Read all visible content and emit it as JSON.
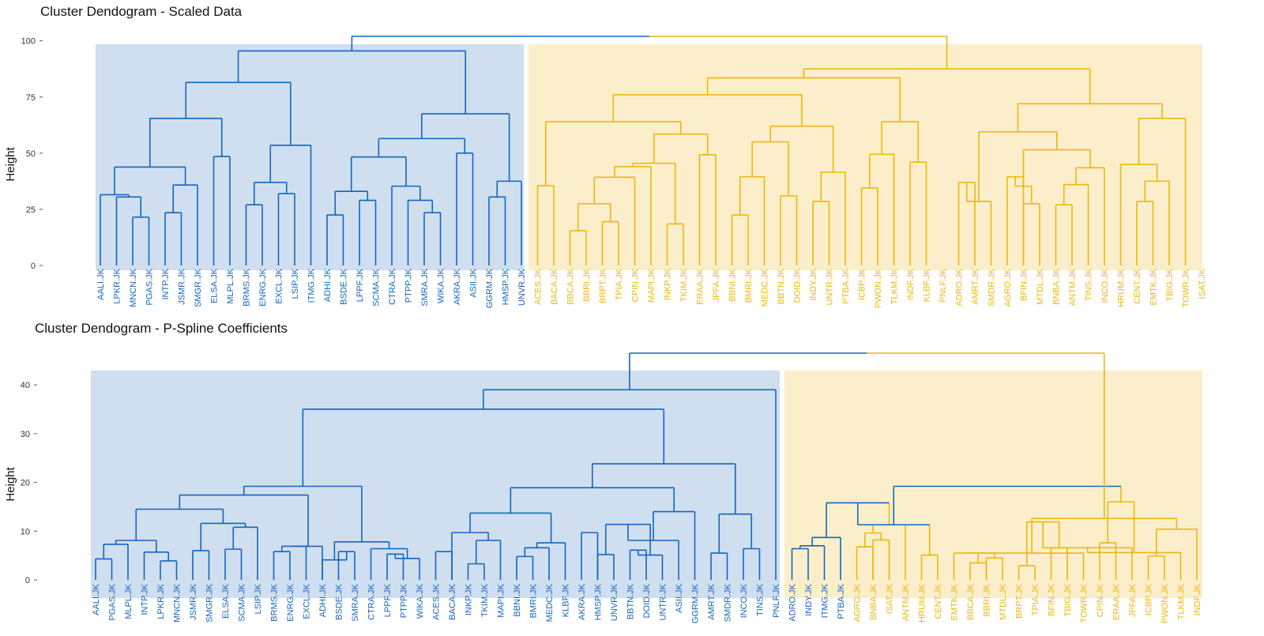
{
  "colors": {
    "blue": "#1565C0",
    "yellow": "#EFB60E",
    "blue_fill": "#CFDFEF",
    "yellow_fill": "#FBEFCB",
    "tick": "#555555"
  },
  "chart_data": [
    {
      "type": "dendrogram",
      "title": "Cluster Dendogram - Scaled Data",
      "ylabel": "Height",
      "xlabel": "",
      "ylim": [
        0,
        102
      ],
      "yticks": [
        0,
        25,
        50,
        75,
        100
      ],
      "clusters": [
        {
          "color": "blue",
          "leaf_range": [
            0,
            26
          ]
        },
        {
          "color": "yellow",
          "leaf_range": [
            27,
            68
          ]
        }
      ],
      "leaves": [
        "AALI.JK",
        "LPKR.JK",
        "MNCN.JK",
        "PGAS.JK",
        "INTP.JK",
        "JSMR.JK",
        "SMGR.JK",
        "ELSA.JK",
        "MLPL.JK",
        "BRMS.JK",
        "ENRG.JK",
        "EXCL.JK",
        "LSIP.JK",
        "ITMG.JK",
        "ADHI.JK",
        "BSDE.JK",
        "LPPF.JK",
        "SCMA.JK",
        "CTRA.JK",
        "PTPP.JK",
        "SMRA.JK",
        "WIKA.JK",
        "AKRA.JK",
        "ASII.JK",
        "GGRM.JK",
        "HMSP.JK",
        "UNVR.JK",
        "ACES.JK",
        "BACA.JK",
        "BBCA.JK",
        "BBRI.JK",
        "BRPT.JK",
        "TPIA.JK",
        "CPIN.JK",
        "MAPI.JK",
        "INKP.JK",
        "TKIM.JK",
        "ERAA.JK",
        "JPFA.JK",
        "BBNI.JK",
        "BMRI.JK",
        "MEDC.JK",
        "BBTN.JK",
        "DOID.JK",
        "INDY.JK",
        "UNTR.JK",
        "PTBA.JK",
        "ICBP.JK",
        "PWON.JK",
        "TLKM.JK",
        "INDF.JK",
        "KLBF.JK",
        "PNLF.JK",
        "ADRO.JK",
        "AMRT.JK",
        "SMDR.JK",
        "AGRO.JK",
        "BFIN.JK",
        "MTDL.JK",
        "BNBA.JK",
        "ANTM.JK",
        "TINS.JK",
        "INCO.JK",
        "HRUM.JK",
        "CENT.JK",
        "EMTK.JK",
        "TBIG.JK",
        "TOWR.JK",
        "ISAT.JK"
      ],
      "merges": [
        [
          2,
          3,
          21.5
        ],
        [
          1,
          "m0",
          30.5
        ],
        [
          0,
          "m1",
          31.5
        ],
        [
          4,
          5,
          23.5
        ],
        [
          "m3",
          6,
          35.8
        ],
        [
          "m2",
          "m4",
          43.8
        ],
        [
          7,
          8,
          48.5
        ],
        [
          "m5",
          "m6",
          65.5
        ],
        [
          9,
          10,
          27
        ],
        [
          11,
          12,
          32
        ],
        [
          "m8",
          "m9",
          37
        ],
        [
          "m10",
          13,
          53.5
        ],
        [
          "m7",
          "m11",
          81.5
        ],
        [
          14,
          15,
          22.5
        ],
        [
          16,
          17,
          29
        ],
        [
          "m13",
          "m14",
          33
        ],
        [
          20,
          21,
          23.5
        ],
        [
          19,
          "m16",
          29
        ],
        [
          18,
          "m17",
          35.3
        ],
        [
          "m15",
          "m18",
          48.3
        ],
        [
          22,
          23,
          50
        ],
        [
          "m19",
          "m20",
          56.5
        ],
        [
          24,
          25,
          30.5
        ],
        [
          "m22",
          26,
          37.5
        ],
        [
          "m21",
          "m23",
          67.5
        ],
        [
          "m12",
          "m24",
          95.5
        ],
        [
          27,
          28,
          35.5
        ],
        [
          29,
          30,
          15.5
        ],
        [
          31,
          32,
          19.5
        ],
        [
          "m27",
          "m28",
          27.5
        ],
        [
          "m29",
          33,
          39.3
        ],
        [
          "m30",
          34,
          44
        ],
        [
          35,
          36,
          18.5
        ],
        [
          "m31",
          "m32",
          45.5
        ],
        [
          37,
          38,
          49.3
        ],
        [
          "m33",
          "m34",
          58.5
        ],
        [
          "m26",
          "m35",
          64
        ],
        [
          39,
          40,
          22.5
        ],
        [
          "m37",
          41,
          39.5
        ],
        [
          42,
          43,
          31
        ],
        [
          "m38",
          "m39",
          55
        ],
        [
          44,
          45,
          28.5
        ],
        [
          "m41",
          46,
          41.5
        ],
        [
          "m40",
          "m42",
          62
        ],
        [
          "m36",
          "m43",
          76
        ],
        [
          47,
          48,
          34.5
        ],
        [
          "m45",
          49,
          49.5
        ],
        [
          50,
          51,
          46
        ],
        [
          "m46",
          "m47",
          64
        ],
        [
          "m44",
          "m48",
          83.5
        ],
        [
          53,
          54,
          37
        ],
        [
          "m50",
          55,
          28.5
        ],
        [
          56,
          57,
          39.5
        ],
        [
          57,
          58,
          27.5
        ],
        [
          "m52",
          "m53",
          35.3
        ],
        [
          59,
          60,
          27
        ],
        [
          "m55",
          61,
          36
        ],
        [
          "m56",
          62,
          43.5
        ],
        [
          "m54",
          "m57",
          51.5
        ],
        [
          "m51",
          "m58",
          59.5
        ],
        [
          64,
          65,
          28.5
        ],
        [
          "m60",
          66,
          37.5
        ],
        [
          63,
          "m61",
          45
        ],
        [
          "m62",
          67,
          65.5
        ],
        [
          "m59",
          "m63",
          72
        ],
        [
          "m49",
          "m64",
          87.5
        ],
        [
          "m25",
          "m65",
          102
        ]
      ]
    },
    {
      "type": "dendrogram",
      "title": "Cluster Dendogram - P-Spline Coefficients",
      "ylabel": "Height",
      "xlabel": "",
      "ylim": [
        0,
        46.5
      ],
      "yticks": [
        0,
        10,
        20,
        30,
        40
      ],
      "clusters": [
        {
          "color": "blue",
          "leaf_range": [
            0,
            46
          ]
        },
        {
          "color": "yellow",
          "leaf_range": [
            47,
            68
          ]
        }
      ],
      "leaves": [
        "AALI.JK",
        "PGAS.JK",
        "MLPL.JK",
        "INTP.JK",
        "LPKR.JK",
        "MNCN.JK",
        "JSMR.JK",
        "SMGR.JK",
        "ELSA.JK",
        "SCMA.JK",
        "LSIP.JK",
        "BRMS.JK",
        "ENRG.JK",
        "EXCL.JK",
        "ADHI.JK",
        "BSDE.JK",
        "SMRA.JK",
        "CTRA.JK",
        "LPPF.JK",
        "PTPP.JK",
        "WIKA.JK",
        "ACES.JK",
        "BACA.JK",
        "INKP.JK",
        "TKIM.JK",
        "MAPI.JK",
        "BBNI.JK",
        "BMRI.JK",
        "MEDC.JK",
        "KLBF.JK",
        "AKRA.JK",
        "HMSP.JK",
        "UNVR.JK",
        "BBTN.JK",
        "DOID.JK",
        "UNTR.JK",
        "ASII.JK",
        "GGRM.JK",
        "AMRT.JK",
        "SMDR.JK",
        "INCO.JK",
        "TINS.JK",
        "PNLF.JK",
        "ADRO.JK",
        "INDY.JK",
        "ITMG.JK",
        "PTBA.JK",
        "AGRO.JK",
        "BNBA.JK",
        "ISAT.JK",
        "ANTM.JK",
        "HRUM.JK",
        "CENT.JK",
        "EMTK.JK",
        "BBCA.JK",
        "BBRI.JK",
        "MTDL.JK",
        "BRPT.JK",
        "TPIA.JK",
        "BFIN.JK",
        "TBIG.JK",
        "TOWR.JK",
        "CPIN.JK",
        "ERAA.JK",
        "JPFA.JK",
        "ICBP.JK",
        "PWON.JK",
        "TLKM.JK",
        "INDF.JK"
      ],
      "merges": [
        [
          0,
          1,
          4.3
        ],
        [
          "m0",
          2,
          7.3
        ],
        [
          4,
          5,
          3.9
        ],
        [
          3,
          "m2",
          5.7
        ],
        [
          "m1",
          "m3",
          8.1
        ],
        [
          6,
          7,
          6
        ],
        [
          8,
          9,
          6.3
        ],
        [
          "m6",
          10,
          10.8
        ],
        [
          "m5",
          "m7",
          11.6
        ],
        [
          "m4",
          "m8",
          14.5
        ],
        [
          11,
          12,
          5.8
        ],
        [
          "m10",
          13,
          6.9
        ],
        [
          "m11",
          14,
          6.9
        ],
        [
          15,
          16,
          5.8
        ],
        [
          14,
          "m13",
          4.1
        ],
        [
          "m9",
          "m12",
          17.4
        ],
        [
          18,
          19,
          5.3
        ],
        [
          "m16",
          20,
          4.4
        ],
        [
          17,
          "m17",
          6.4
        ],
        [
          "m14",
          "m18",
          7.8
        ],
        [
          "m15",
          "m19",
          19.2
        ],
        [
          21,
          22,
          5.8
        ],
        [
          23,
          24,
          3.3
        ],
        [
          "m22",
          25,
          8.1
        ],
        [
          22,
          "m23",
          9.7
        ],
        [
          26,
          27,
          4.8
        ],
        [
          "m25",
          28,
          6.6
        ],
        [
          "m26",
          29,
          7.6
        ],
        [
          "m24",
          "m27",
          13.7
        ],
        [
          30,
          31,
          9.7
        ],
        [
          31,
          32,
          5.2
        ],
        [
          33,
          34,
          6.1
        ],
        [
          "m31",
          35,
          5.1
        ],
        [
          "m30",
          "m32",
          11.4
        ],
        [
          "m33",
          36,
          8.1
        ],
        [
          "m34",
          37,
          14
        ],
        [
          "m28",
          "m35",
          18.9
        ],
        [
          38,
          39,
          5.5
        ],
        [
          40,
          41,
          6.4
        ],
        [
          "m37",
          "m38",
          13.5
        ],
        [
          "m36",
          "m39",
          23.8
        ],
        [
          "m20",
          "m40",
          35
        ],
        [
          "m41",
          42,
          39
        ],
        [
          43,
          44,
          6.4
        ],
        [
          "m43",
          45,
          7
        ],
        [
          "m44",
          46,
          8.7
        ],
        [
          47,
          48,
          6.8
        ],
        [
          48,
          49,
          8.2
        ],
        [
          "m46",
          "m47",
          9.6
        ],
        [
          "m48",
          50,
          11.3
        ],
        [
          "m45",
          "m49",
          15.8
        ],
        [
          51,
          52,
          5.1
        ],
        [
          "m50",
          "m51",
          11.3
        ],
        [
          54,
          55,
          3.5
        ],
        [
          55,
          56,
          4.5
        ],
        [
          53,
          "m53",
          5.5
        ],
        [
          57,
          58,
          2.9
        ],
        [
          "m54",
          "m55",
          5.5
        ],
        [
          59,
          60,
          6.6
        ],
        [
          "m57",
          61,
          5.5
        ],
        [
          "m56",
          "m58",
          11.9
        ],
        [
          62,
          63,
          7.6
        ],
        [
          "m60",
          64,
          6.6
        ],
        [
          65,
          66,
          4.9
        ],
        [
          "m62",
          67,
          5.6
        ],
        [
          "m63",
          68,
          10.4
        ],
        [
          "m61",
          "m64",
          16
        ],
        [
          "m59",
          "m65",
          12.6
        ],
        [
          "m52",
          "m66",
          19.2
        ],
        [
          "m42",
          "m67",
          46.5
        ]
      ]
    }
  ]
}
